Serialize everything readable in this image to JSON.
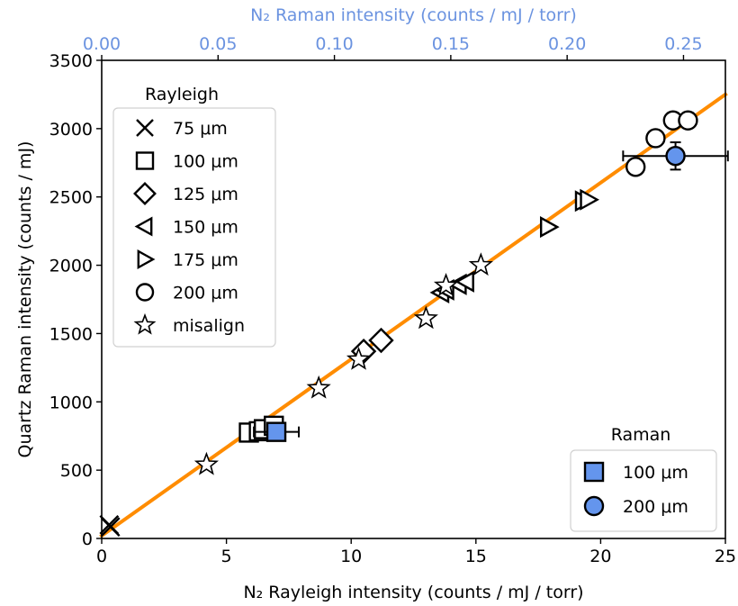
{
  "chart_data": {
    "type": "scatter",
    "xlabel": "N₂ Rayleigh intensity  (counts / mJ / torr)",
    "ylabel": "Quartz Raman intensity  (counts / mJ)",
    "x2label": "N₂ Raman intensity  (counts / mJ / torr)",
    "xlim": [
      0,
      25
    ],
    "ylim": [
      0,
      3500
    ],
    "x2lim": [
      0,
      0.268
    ],
    "xticks": [
      "0",
      "5",
      "10",
      "15",
      "20",
      "25"
    ],
    "yticks": [
      "0",
      "500",
      "1000",
      "1500",
      "2000",
      "2500",
      "3000",
      "3500"
    ],
    "x2ticks": [
      "0.00",
      "0.05",
      "0.10",
      "0.15",
      "0.20",
      "0.25"
    ],
    "grid": false,
    "colors": {
      "fit": "#ff8c00",
      "raman_fill": "#6495ed",
      "top_axis": "#6b93e0",
      "marker_edge": "#000000"
    },
    "fit_line": {
      "x": [
        0,
        25
      ],
      "y": [
        20,
        3250
      ]
    },
    "rayleigh_legend": {
      "title": "Rayleigh",
      "position": "upper-left",
      "entries": [
        {
          "marker": "x-icon",
          "label": "75 μm"
        },
        {
          "marker": "square-icon",
          "label": "100 μm"
        },
        {
          "marker": "diamond-icon",
          "label": "125 μm"
        },
        {
          "marker": "triangle-left-icon",
          "label": "150 μm"
        },
        {
          "marker": "triangle-right-icon",
          "label": "175 μm"
        },
        {
          "marker": "circle-icon",
          "label": "200 μm"
        },
        {
          "marker": "star-icon",
          "label": "misalign"
        }
      ]
    },
    "raman_legend": {
      "title": "Raman",
      "position": "lower-right",
      "entries": [
        {
          "marker": "square-icon",
          "label": "100 μm"
        },
        {
          "marker": "circle-icon",
          "label": "200 μm"
        }
      ]
    },
    "series": [
      {
        "marker": "x",
        "points": [
          [
            0.3,
            100
          ],
          [
            0.35,
            85
          ]
        ]
      },
      {
        "marker": "square",
        "points": [
          [
            5.9,
            775
          ],
          [
            6.3,
            785
          ],
          [
            6.5,
            800
          ],
          [
            6.9,
            825
          ]
        ]
      },
      {
        "marker": "diamond",
        "points": [
          [
            10.5,
            1370
          ],
          [
            11.2,
            1450
          ]
        ]
      },
      {
        "marker": "triangle-left",
        "points": [
          [
            13.6,
            1800
          ],
          [
            13.8,
            1820
          ],
          [
            14.3,
            1860
          ],
          [
            14.6,
            1880
          ]
        ]
      },
      {
        "marker": "triangle-right",
        "points": [
          [
            17.9,
            2280
          ],
          [
            19.3,
            2470
          ],
          [
            19.5,
            2480
          ]
        ]
      },
      {
        "marker": "circle",
        "points": [
          [
            21.4,
            2720
          ],
          [
            22.2,
            2930
          ],
          [
            22.9,
            3060
          ],
          [
            23.5,
            3060
          ]
        ]
      },
      {
        "marker": "star",
        "points": [
          [
            4.2,
            540
          ],
          [
            8.7,
            1100
          ],
          [
            10.3,
            1310
          ],
          [
            13.0,
            1610
          ],
          [
            13.8,
            1850
          ],
          [
            15.2,
            2000
          ]
        ]
      }
    ],
    "raman_series": [
      {
        "marker": "square",
        "label": "100 μm",
        "x": 7.0,
        "y": 780,
        "x_err": [
          0.9,
          0.9
        ],
        "y_err": [
          60,
          60
        ]
      },
      {
        "marker": "circle",
        "label": "200 μm",
        "x": 23.0,
        "y": 2800,
        "x_err": [
          2.1,
          2.1
        ],
        "y_err": [
          100,
          100
        ]
      }
    ]
  }
}
